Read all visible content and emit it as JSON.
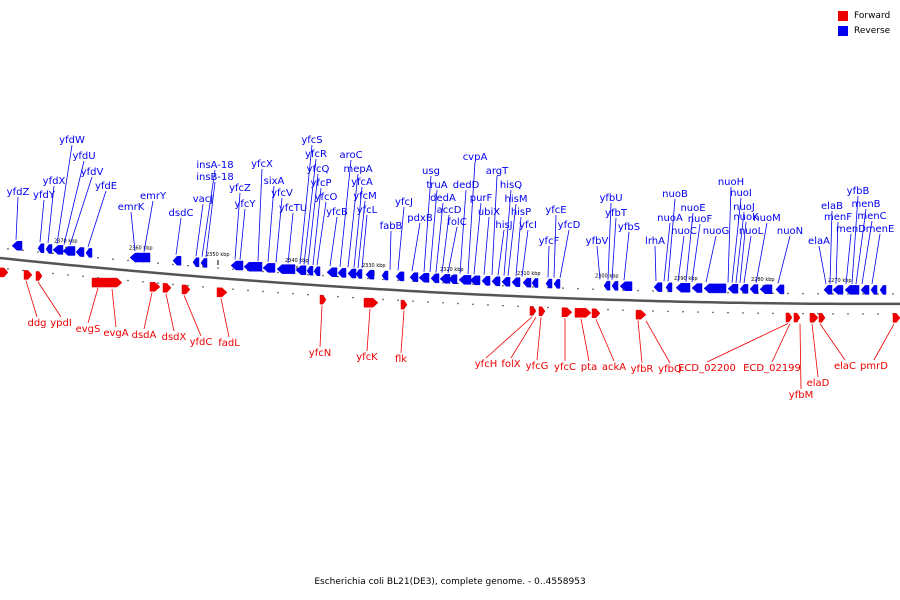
{
  "colors": {
    "forward": "#ee0000",
    "reverse": "#0000ee",
    "backbone": "#555555"
  },
  "legend": [
    {
      "label": "Forward",
      "color": "#ee0000"
    },
    {
      "label": "Reverse",
      "color": "#0000ee"
    }
  ],
  "caption": "Escherichia coli BL21(DE3), complete genome. - 0..4558953",
  "scale_labels": [
    "2370 kbp",
    "2360 kbp",
    "2350 kbp",
    "2340 kbp",
    "2330 kbp",
    "2320 kbp",
    "2310 kbp",
    "2300 kbp",
    "2290 kbp",
    "2280 kbp",
    "2270 kbp"
  ],
  "reverse_labels": [
    "yfdZ",
    "yfdY",
    "yfdX",
    "yfdW",
    "yfdU",
    "yfdV",
    "yfdE",
    "emrK",
    "emrY",
    "dsdC",
    "vacJ",
    "insA-18",
    "insB-18",
    "yfcZ",
    "yfcY",
    "yfcX",
    "sixA",
    "yfcV",
    "yfcTU",
    "yfcS",
    "yfcR",
    "yfcQ",
    "yfcP",
    "yfcO",
    "yfcB",
    "aroC",
    "mepA",
    "yfcA",
    "yfcM",
    "yfcL",
    "fabB",
    "yfcJ",
    "pdxB",
    "usg",
    "truA",
    "dedA",
    "accD",
    "folC",
    "cvpA",
    "dedD",
    "purF",
    "ubiX",
    "argT",
    "hisJ",
    "hisQ",
    "hisM",
    "hisP",
    "yfcI",
    "yfcF",
    "yfcE",
    "yfcD",
    "yfbV",
    "yfbU",
    "yfbT",
    "yfbS",
    "lrhA",
    "nuoA",
    "nuoB",
    "nuoC",
    "nuoE",
    "nuoF",
    "nuoG",
    "nuoH",
    "nuoI",
    "nuoJ",
    "nuoK",
    "nuoL",
    "nuoM",
    "nuoN",
    "elaA",
    "elaB",
    "menF",
    "menD",
    "yfbB",
    "menB",
    "menC",
    "menE"
  ],
  "forward_labels": [
    "ddg",
    "ypdI",
    "evgS",
    "evgA",
    "dsdA",
    "dsdX",
    "yfdC",
    "fadL",
    "yfcN",
    "yfcK",
    "flk",
    "yfcH",
    "folX",
    "yfcG",
    "yfcC",
    "pta",
    "ackA",
    "yfbR",
    "yfbQ",
    "ECD_02200",
    "ECD_02199",
    "yfbM",
    "elaD",
    "elaC",
    "pmrD"
  ]
}
